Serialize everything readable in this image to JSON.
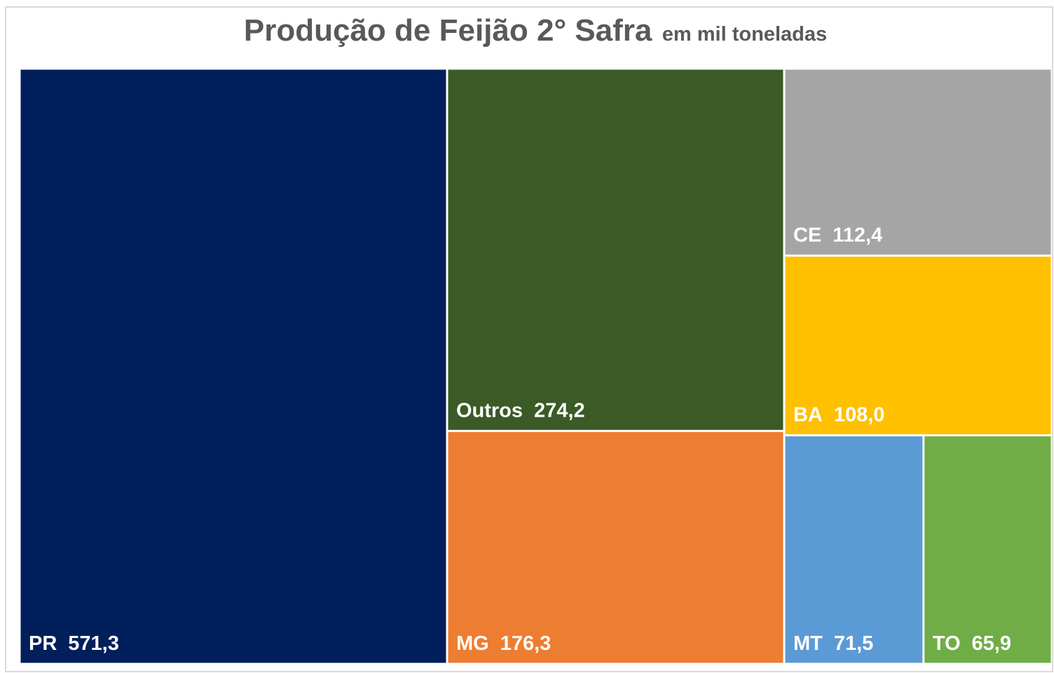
{
  "chart_data": {
    "type": "treemap",
    "title": "Produção de Feijão 2° Safra",
    "subtitle": "em mil toneladas",
    "categories": [
      "PR",
      "Outros",
      "MG",
      "CE",
      "BA",
      "MT",
      "TO"
    ],
    "values": [
      571.3,
      274.2,
      176.3,
      112.4,
      108.0,
      71.5,
      65.9
    ],
    "value_labels": [
      "571,3",
      "274,2",
      "176,3",
      "112,4",
      "108,0",
      "71,5",
      "65,9"
    ],
    "colors": [
      "#001f5b",
      "#3b5a26",
      "#ed7d31",
      "#a5a5a5",
      "#ffc000",
      "#5b9bd5",
      "#70ad47"
    ]
  }
}
